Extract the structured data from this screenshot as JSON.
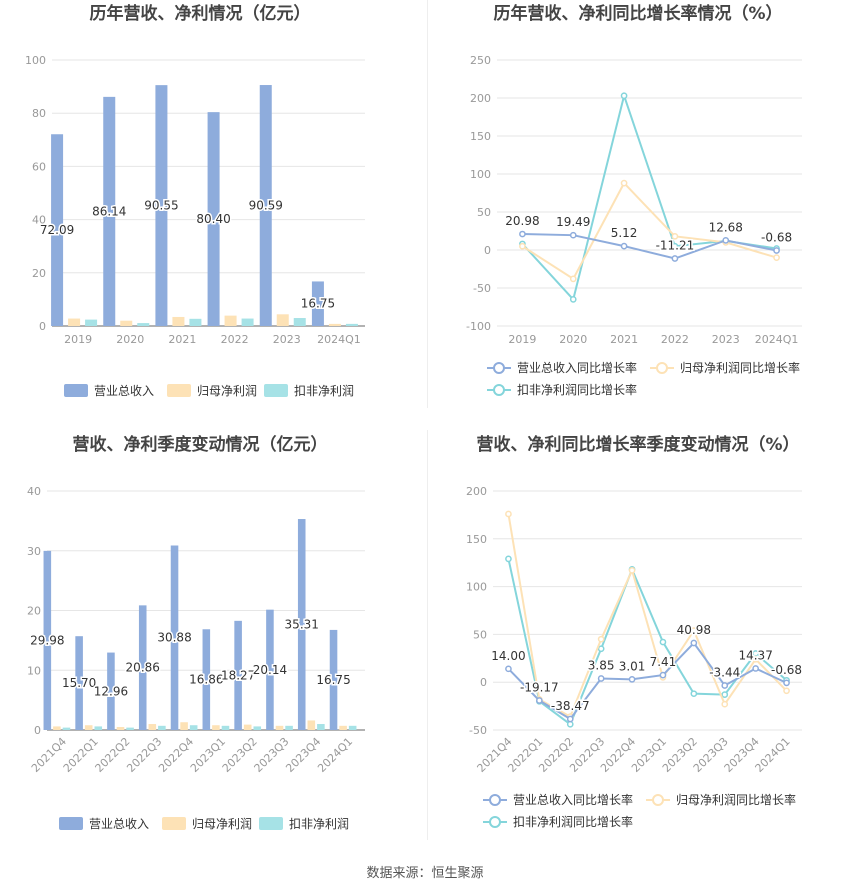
{
  "source_text": "数据来源：恒生聚源",
  "colors": {
    "revenue": "#8eacdc",
    "net_profit": "#fde2b6",
    "deducted_profit": "#a6e2e6",
    "revenue_line": "#8eacdc",
    "net_profit_line": "#fde2b6",
    "deducted_profit_line": "#84d5db",
    "grid": "#e6e6e6",
    "axis_text": "#999999",
    "title_text": "#444444"
  },
  "chart_data": [
    {
      "type": "bar",
      "title": "历年营收、净利情况（亿元）",
      "categories": [
        "2019",
        "2020",
        "2021",
        "2022",
        "2023",
        "2024Q1"
      ],
      "ylim": [
        0,
        100
      ],
      "yticks": [
        0,
        20,
        40,
        60,
        80,
        100
      ],
      "series": [
        {
          "name": "营业总收入",
          "values": [
            72.09,
            86.14,
            90.55,
            80.4,
            90.59,
            16.75
          ]
        },
        {
          "name": "归母净利润",
          "values": [
            2.8,
            2.0,
            3.4,
            3.9,
            4.4,
            0.8
          ]
        },
        {
          "name": "扣非净利润",
          "values": [
            2.4,
            1.1,
            2.7,
            2.8,
            3.0,
            0.8
          ]
        }
      ],
      "data_labels": [
        "72.09",
        "86.14",
        "90.55",
        "80.40",
        "90.59",
        "16.75"
      ]
    },
    {
      "type": "line",
      "title": "历年营收、净利同比增长率情况（%）",
      "categories": [
        "2019",
        "2020",
        "2021",
        "2022",
        "2023",
        "2024Q1"
      ],
      "ylim": [
        -100,
        250
      ],
      "yticks": [
        -100,
        -50,
        0,
        50,
        100,
        150,
        200,
        250
      ],
      "series": [
        {
          "name": "营业总收入同比增长率",
          "values": [
            20.98,
            19.49,
            5.12,
            -11.21,
            12.68,
            -0.68
          ]
        },
        {
          "name": "归母净利润同比增长率",
          "values": [
            5,
            -38,
            88,
            18,
            10,
            -10
          ]
        },
        {
          "name": "扣非净利润同比增长率",
          "values": [
            8,
            -65,
            203,
            5,
            12,
            2
          ]
        }
      ],
      "data_labels": [
        "20.98",
        "19.49",
        "5.12",
        "-11.21",
        "12.68",
        "-0.68"
      ]
    },
    {
      "type": "bar",
      "title": "营收、净利季度变动情况（亿元）",
      "categories": [
        "2021Q4",
        "2022Q1",
        "2022Q2",
        "2022Q3",
        "2022Q4",
        "2023Q1",
        "2023Q2",
        "2023Q3",
        "2023Q4",
        "2024Q1"
      ],
      "ylim": [
        0,
        40
      ],
      "yticks": [
        0,
        10,
        20,
        30,
        40
      ],
      "series": [
        {
          "name": "营业总收入",
          "values": [
            29.98,
            15.7,
            12.96,
            20.86,
            30.88,
            16.86,
            18.27,
            20.14,
            35.31,
            16.75
          ]
        },
        {
          "name": "归母净利润",
          "values": [
            0.6,
            0.8,
            0.5,
            1.0,
            1.3,
            0.8,
            0.9,
            0.7,
            1.6,
            0.7
          ]
        },
        {
          "name": "扣非净利润",
          "values": [
            0.4,
            0.6,
            0.4,
            0.7,
            0.8,
            0.7,
            0.6,
            0.7,
            1.0,
            0.7
          ]
        }
      ],
      "data_labels": [
        "29.98",
        "15.70",
        "12.96",
        "20.86",
        "30.88",
        "16.86",
        "18.27",
        "20.14",
        "35.31",
        "16.75"
      ]
    },
    {
      "type": "line",
      "title": "营收、净利同比增长率季度变动情况（%）",
      "categories": [
        "2021Q4",
        "2022Q1",
        "2022Q2",
        "2022Q3",
        "2022Q4",
        "2023Q1",
        "2023Q2",
        "2023Q3",
        "2023Q4",
        "2024Q1"
      ],
      "ylim": [
        -50,
        200
      ],
      "yticks": [
        -50,
        0,
        50,
        100,
        150,
        200
      ],
      "series": [
        {
          "name": "营业总收入同比增长率",
          "values": [
            14.0,
            -19.17,
            -38.47,
            3.85,
            3.01,
            7.41,
            40.98,
            -3.44,
            14.37,
            -0.68
          ]
        },
        {
          "name": "归母净利润同比增长率",
          "values": [
            176,
            -18,
            -36,
            45,
            117,
            5,
            54,
            -23,
            24,
            -9
          ]
        },
        {
          "name": "扣非净利润同比增长率",
          "values": [
            129,
            -20,
            -44,
            35,
            118,
            42,
            -12,
            -13,
            30,
            2
          ]
        }
      ],
      "data_labels": [
        "14.00",
        "-19.17",
        "-38.47",
        "3.85",
        "3.01",
        "7.41",
        "40.98",
        "-3.44",
        "14.37",
        "-0.68"
      ]
    }
  ]
}
